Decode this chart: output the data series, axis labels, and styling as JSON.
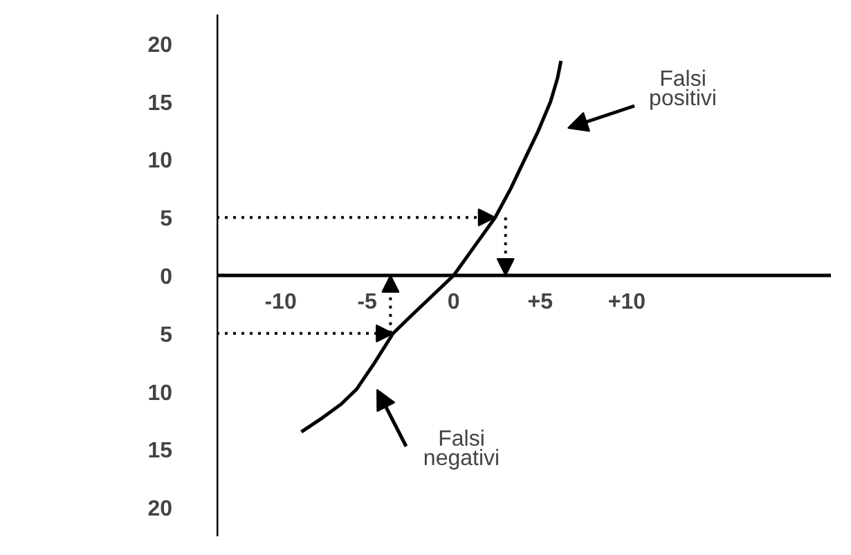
{
  "chart_data": {
    "type": "line",
    "series": [
      {
        "color": "#000000",
        "x": [
          -8.8,
          -7.6,
          -6.5,
          -5.6,
          -4.6,
          -3.5,
          -2.4,
          -1.2,
          0,
          1.2,
          2.4,
          3.3,
          4.1,
          4.9,
          5.6,
          6.0,
          6.2
        ],
        "values": [
          -13.5,
          -12.3,
          -11.1,
          -9.8,
          -7.6,
          -5,
          -3.4,
          -1.7,
          0,
          2.5,
          5,
          7.5,
          10,
          12.5,
          15,
          17,
          18.5
        ]
      }
    ],
    "xlim": [
      -13.7,
      21.8
    ],
    "ylim": [
      -22.5,
      22.5
    ],
    "xticks": [
      -10,
      -5,
      0,
      {
        "value": 5,
        "label": "+5"
      },
      {
        "value": 10,
        "label": "+10"
      }
    ],
    "yticks": [
      {
        "value": -20,
        "label": "20"
      },
      {
        "value": -15,
        "label": "15"
      },
      {
        "value": -10,
        "label": "10"
      },
      {
        "value": -5,
        "label": "5"
      },
      0,
      5,
      10,
      15,
      20
    ],
    "annotations": [
      "Falsi\npositivi",
      "Falsi\nnegativi"
    ],
    "grid": false,
    "marker": "none",
    "line_style": "solid"
  }
}
